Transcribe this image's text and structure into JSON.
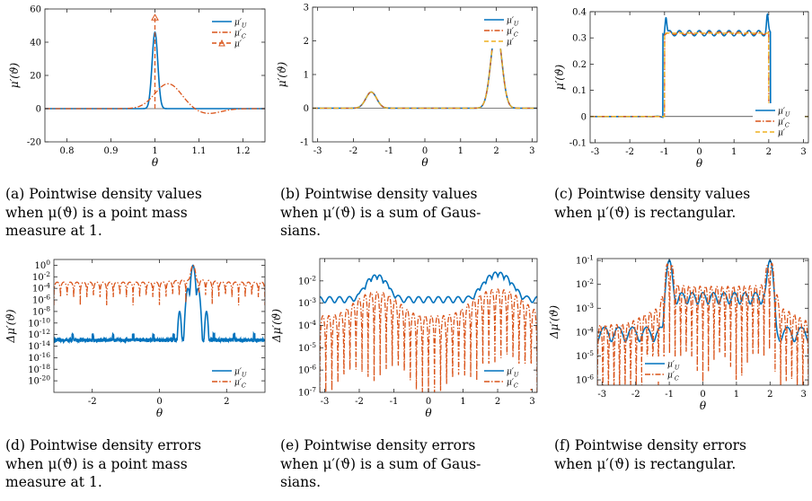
{
  "colors": {
    "u": "#0072BD",
    "c": "#D95319",
    "m": "#EDB120",
    "axis": "#262626"
  },
  "captions": [
    {
      "id": "a",
      "lines": [
        "(a) Pointwise density values",
        "when μ(ϑ) is a point mass",
        "measure at 1."
      ]
    },
    {
      "id": "b",
      "lines": [
        "(b) Pointwise density values",
        "when μ′(ϑ) is a sum of Gaus-",
        "sians."
      ]
    },
    {
      "id": "c",
      "lines": [
        "(c) Pointwise density values",
        "when μ′(ϑ) is rectangular."
      ]
    },
    {
      "id": "d",
      "lines": [
        "(d) Pointwise density errors",
        "when μ(ϑ) is a point mass",
        "measure at 1."
      ]
    },
    {
      "id": "e",
      "lines": [
        "(e) Pointwise density errors",
        "when μ′(ϑ) is a sum of Gaus-",
        "sians."
      ]
    },
    {
      "id": "f",
      "lines": [
        "(f) Pointwise density errors",
        "when μ′(ϑ) is rectangular."
      ]
    }
  ],
  "chart_data": [
    {
      "id": "a",
      "type": "line",
      "xlabel": "θ",
      "ylabel": "μ′(ϑ)",
      "xlim": [
        0.75,
        1.25
      ],
      "ylim": [
        -20,
        60
      ],
      "xticks": [
        "0.8",
        "0.9",
        "1",
        "1.1",
        "1.2"
      ],
      "yticks": [
        "-20",
        "0",
        "20",
        "40",
        "60"
      ],
      "legend_position": "top-right",
      "series": [
        {
          "name": "μ′U",
          "style": "solid",
          "color": "u",
          "shape": "narrow peak at 1, height ≈ 46, width ≈ 0.015"
        },
        {
          "name": "μ′C",
          "style": "dashdot",
          "color": "c",
          "shape": "smooth bump, peak ≈ 15 at 1.03, dip ≈ -3 at 1.12"
        },
        {
          "name": "μ′",
          "style": "dashed",
          "color": "c",
          "shape": "vertical spike at 1 reaching ≈ 55, triangle marker"
        }
      ]
    },
    {
      "id": "b",
      "type": "line",
      "xlabel": "θ",
      "ylabel": "μ′(ϑ)",
      "xlim": [
        -3.14159,
        3.14159
      ],
      "ylim": [
        -1,
        3
      ],
      "xticks": [
        "-3",
        "-2",
        "-1",
        "0",
        "1",
        "2",
        "3"
      ],
      "yticks": [
        "-1",
        "0",
        "1",
        "2",
        "3"
      ],
      "legend_position": "top-right",
      "series": [
        {
          "name": "μ′U",
          "style": "solid",
          "color": "u",
          "shape": "gaussians: 0.48 at -1.5, 2.4 at 2"
        },
        {
          "name": "μ′C",
          "style": "dashdot",
          "color": "c",
          "shape": "gaussians: 0.48 at -1.5, 2.4 at 2"
        },
        {
          "name": "μ′",
          "style": "dashed",
          "color": "m",
          "shape": "gaussians: 0.48 at -1.5, 2.4 at 2"
        }
      ]
    },
    {
      "id": "c",
      "type": "line",
      "xlabel": "θ",
      "ylabel": "μ′(ϑ)",
      "xlim": [
        -3.14159,
        3.14159
      ],
      "ylim": [
        -0.1,
        0.4
      ],
      "xticks": [
        "-3",
        "-2",
        "-1",
        "0",
        "1",
        "2",
        "3"
      ],
      "yticks": [
        "-0.1",
        "0",
        "0.1",
        "0.2",
        "0.3",
        "0.4"
      ],
      "legend_position": "bottom-right",
      "series": [
        {
          "name": "μ′U",
          "style": "solid",
          "color": "u",
          "shape": "rectangle 0.318 on [-1,2] with ripple, overshoot 0.385"
        },
        {
          "name": "μ′C",
          "style": "dashdot",
          "color": "c",
          "shape": "rectangle 0.318 on [-1,2] with small ripple"
        },
        {
          "name": "μ′",
          "style": "dashed",
          "color": "m",
          "shape": "rectangle 0.318 on [-1,2]"
        }
      ]
    },
    {
      "id": "d",
      "type": "line",
      "yscale": "log",
      "xlabel": "θ",
      "ylabel": "Δμ′(ϑ)",
      "xlim": [
        -3.14159,
        3.14159
      ],
      "ylim": [
        1e-22,
        10
      ],
      "xticks": [
        "-2",
        "0",
        "2"
      ],
      "yticks": [
        "10^0",
        "10^-2",
        "10^-4",
        "10^-6",
        "10^-8",
        "10^-10",
        "10^-12",
        "10^-14",
        "10^-16",
        "10^-18",
        "10^-20"
      ],
      "legend_position": "bottom-right",
      "series": [
        {
          "name": "μ′U",
          "style": "solid",
          "color": "u",
          "shape": "noise ≈ 1e-13 with periodic spikes, peak ≈ 1 at 1"
        },
        {
          "name": "μ′C",
          "style": "dashdot",
          "color": "c",
          "shape": "oscillating ≈ 1e-3 with deep nulls, peak at 1"
        }
      ]
    },
    {
      "id": "e",
      "type": "line",
      "yscale": "log",
      "xlabel": "θ",
      "ylabel": "Δμ′(ϑ)",
      "xlim": [
        -3.14159,
        3.14159
      ],
      "ylim": [
        1e-07,
        0.1
      ],
      "xticks": [
        "-3",
        "-2",
        "-1",
        "0",
        "1",
        "2",
        "3"
      ],
      "yticks": [
        "10^-2",
        "10^-3",
        "10^-4",
        "10^-5",
        "10^-6",
        "10^-7"
      ],
      "legend_position": "bottom-right",
      "series": [
        {
          "name": "μ′U",
          "style": "solid",
          "color": "u",
          "shape": "baseline ≈ 1.5e-3 with ripple, humps ≈ 2e-2 at -1.5 and 2"
        },
        {
          "name": "μ′C",
          "style": "dashdot",
          "color": "c",
          "shape": "oscillating with deep nulls, humps ≈ 3e-3 at -1.5 and 2"
        }
      ]
    },
    {
      "id": "f",
      "type": "line",
      "yscale": "log",
      "xlabel": "θ",
      "ylabel": "Δμ′(ϑ)",
      "xlim": [
        -3.14159,
        3.14159
      ],
      "ylim": [
        6e-07,
        0.12
      ],
      "xticks": [
        "-3",
        "-2",
        "-1",
        "0",
        "1",
        "2",
        "3"
      ],
      "yticks": [
        "10^-1",
        "10^-2",
        "10^-3",
        "10^-4",
        "10^-5",
        "10^-6"
      ],
      "legend_position": "bottom-left",
      "series": [
        {
          "name": "μ′U",
          "style": "solid",
          "color": "u",
          "shape": "peaks ≈ 0.1 at -1 and 2, plateau ≈ 3e-3 between, ≈ 1e-4 outside"
        },
        {
          "name": "μ′C",
          "style": "dashdot",
          "color": "c",
          "shape": "oscillating with deep nulls, peaks ≈ 0.1 at -1 and 2"
        }
      ]
    }
  ]
}
